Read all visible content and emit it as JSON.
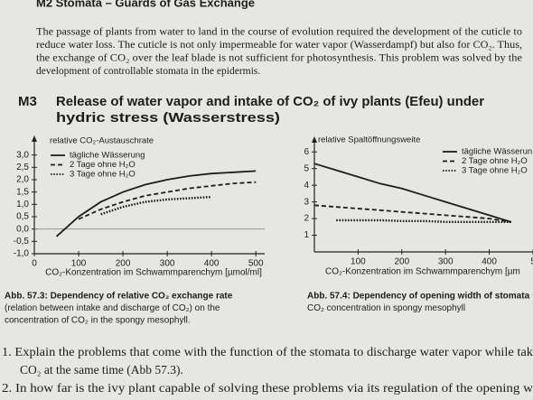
{
  "header": {
    "title": "M2  Stomata – Guards of Gas Exchange"
  },
  "intro": {
    "lines": [
      "The passage of plants from water to land in the course of evolution required the development of the cuticle to",
      "reduce water loss. The cuticle is not only impermeable for water vapor (Wasserdampf) but also for CO₂. Thus,",
      "the exchange of CO₂ over the leaf blade is not sufficient for photosynthesis. This problem was solved by the",
      "development of controllable stomata in the epidermis."
    ]
  },
  "section": {
    "label": "M3",
    "title_lines": [
      "Release of water vapor and intake of CO₂ of ivy plants (Efeu) under",
      "hydric stress (Wasserstress)"
    ]
  },
  "chart_data": [
    {
      "type": "line",
      "y_label": "relative CO₂-Austauschrate",
      "x_label": "CO₂-Konzentration im Schwammparenchym [µmol/ml]",
      "x": [
        50,
        100,
        150,
        200,
        250,
        300,
        350,
        400,
        450,
        500
      ],
      "series": [
        {
          "name": "tägliche Wässerung",
          "color": "#1d1d1d",
          "dash": "solid",
          "values": [
            -0.3,
            0.5,
            1.1,
            1.5,
            1.8,
            2.0,
            2.15,
            2.25,
            2.3,
            2.35
          ]
        },
        {
          "name": "2 Tage ohne H₂O",
          "color": "#1d1d1d",
          "dash": "dashed",
          "values": [
            null,
            0.4,
            0.8,
            1.1,
            1.35,
            1.5,
            1.65,
            1.75,
            1.85,
            1.9
          ]
        },
        {
          "name": "3 Tage ohne H₂O",
          "color": "#1d1d1d",
          "dash": "dotted",
          "values": [
            null,
            null,
            0.6,
            0.9,
            1.1,
            1.2,
            1.25,
            1.3,
            null,
            null
          ]
        }
      ],
      "xlim": [
        0,
        520
      ],
      "ylim": [
        -1,
        3.5
      ],
      "xticks": [
        0,
        100,
        200,
        300,
        400,
        500
      ],
      "yticks": [
        {
          "value": 3,
          "label": "3,0"
        },
        {
          "value": 2.5,
          "label": "2,5"
        },
        {
          "value": 2,
          "label": "2,0"
        },
        {
          "value": 1.5,
          "label": "1,5"
        },
        {
          "value": 1,
          "label": "1,0"
        },
        {
          "value": 0.5,
          "label": "0,5"
        },
        {
          "value": 0,
          "label": "0,0"
        },
        {
          "value": -0.5,
          "label": "-0,5"
        },
        {
          "value": -1,
          "label": "-1,0"
        }
      ],
      "zero_line": true
    },
    {
      "type": "line",
      "y_label": "relative Spaltöffnungsweite",
      "x_label": "CO₂-Konzentration im Schwammparenchym [µm",
      "x": [
        0,
        50,
        100,
        150,
        200,
        250,
        300,
        350,
        400,
        450
      ],
      "series": [
        {
          "name": "tägliche Wässerun",
          "color": "#1d1d1d",
          "dash": "solid",
          "values": [
            5.3,
            4.9,
            4.5,
            4.1,
            3.8,
            3.4,
            3.0,
            2.6,
            2.2,
            1.8
          ]
        },
        {
          "name": "2 Tage ohne H₂O",
          "color": "#1d1d1d",
          "dash": "dashed",
          "values": [
            2.8,
            2.7,
            2.6,
            2.5,
            2.4,
            2.3,
            2.2,
            2.1,
            2.0,
            1.8
          ]
        },
        {
          "name": "3 Tage ohne H₂O",
          "color": "#1d1d1d",
          "dash": "dotted",
          "values": [
            null,
            1.9,
            1.9,
            1.9,
            1.85,
            1.85,
            1.8,
            1.8,
            1.8,
            1.8
          ]
        }
      ],
      "xlim": [
        0,
        500
      ],
      "ylim": [
        0,
        6.5
      ],
      "xticks": [
        100,
        200,
        300,
        400,
        {
          "value": 500,
          "label": "5"
        }
      ],
      "yticks": [
        1,
        2,
        3,
        4,
        5,
        6
      ],
      "zero_line": false
    }
  ],
  "captions": [
    {
      "lines": [
        "Abb. 57.3: Dependency of relative CO₂ exchange rate",
        "(relation between intake and discharge of CO₂) on the",
        "concentration of CO₂ in the spongy mesophyll."
      ]
    },
    {
      "lines": [
        "Abb. 57.4: Dependency of opening width of stomata",
        "CO₂ concentration in spongy mesophyll"
      ]
    }
  ],
  "questions": [
    {
      "lines": [
        "1.  Explain the problems that come with the function of the stomata to discharge water vapor while tak",
        "CO₂ at the same time (Abb 57.3)."
      ]
    },
    {
      "lines": [
        "2.  In how far is the ivy plant capable of solving these problems via its regulation of the opening w"
      ]
    }
  ]
}
